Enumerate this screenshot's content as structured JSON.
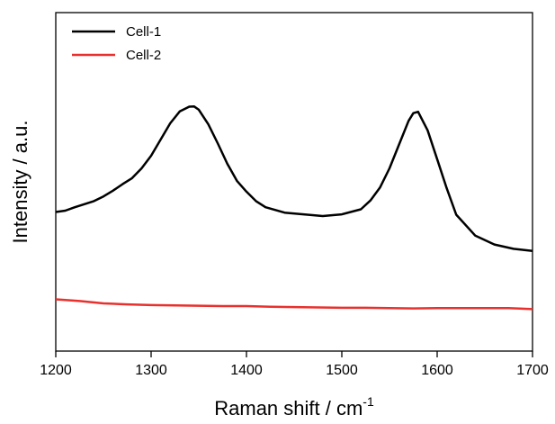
{
  "chart_data": {
    "type": "line",
    "xlabel": "Raman shift / cm",
    "xlabel_sup": "-1",
    "ylabel": "Intensity / a.u.",
    "xlim": [
      1200,
      1700
    ],
    "ylim": [
      0,
      1
    ],
    "x_ticks": [
      "1200",
      "1300",
      "1400",
      "1500",
      "1600",
      "1700"
    ],
    "y_ticks_labeled": false,
    "grid": false,
    "legend_position": "top-left",
    "series": [
      {
        "name": "Cell-1",
        "color": "#000000",
        "x": [
          1200,
          1210,
          1220,
          1230,
          1240,
          1250,
          1260,
          1270,
          1280,
          1290,
          1300,
          1310,
          1320,
          1330,
          1340,
          1345,
          1350,
          1360,
          1370,
          1380,
          1390,
          1400,
          1410,
          1420,
          1440,
          1460,
          1480,
          1500,
          1520,
          1530,
          1540,
          1550,
          1560,
          1570,
          1575,
          1580,
          1590,
          1600,
          1610,
          1620,
          1640,
          1660,
          1680,
          1700
        ],
        "values": [
          0.411,
          0.415,
          0.425,
          0.434,
          0.443,
          0.457,
          0.474,
          0.493,
          0.511,
          0.54,
          0.577,
          0.625,
          0.673,
          0.708,
          0.722,
          0.723,
          0.713,
          0.67,
          0.613,
          0.553,
          0.503,
          0.471,
          0.443,
          0.425,
          0.409,
          0.404,
          0.399,
          0.404,
          0.419,
          0.445,
          0.483,
          0.54,
          0.61,
          0.68,
          0.703,
          0.707,
          0.652,
          0.567,
          0.481,
          0.403,
          0.341,
          0.315,
          0.302,
          0.296
        ]
      },
      {
        "name": "Cell-2",
        "color": "#e8312e",
        "x": [
          1200,
          1225,
          1250,
          1275,
          1300,
          1325,
          1350,
          1375,
          1400,
          1425,
          1450,
          1475,
          1500,
          1525,
          1550,
          1575,
          1600,
          1625,
          1650,
          1675,
          1700
        ],
        "values": [
          0.153,
          0.148,
          0.141,
          0.138,
          0.136,
          0.135,
          0.134,
          0.133,
          0.133,
          0.131,
          0.13,
          0.129,
          0.128,
          0.128,
          0.127,
          0.126,
          0.127,
          0.127,
          0.127,
          0.127,
          0.124
        ]
      }
    ]
  }
}
